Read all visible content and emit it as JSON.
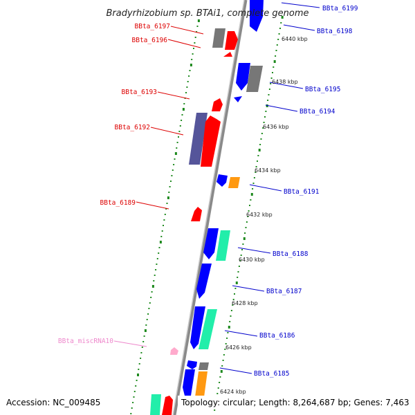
{
  "title": "Bradyrhizobium sp. BTAi1, complete genome",
  "accession": "Accession: NC_009485",
  "topology": "Topology: circular; Length: 8,264,687 bp; Genes: 7,463",
  "colors": {
    "backbone": "#888888",
    "backbone_light": "#bbbbbb",
    "tick": "#1f8a1f",
    "forward_label": "#0000cc",
    "reverse_label": "#dd0000",
    "rna_label": "#ee88cc",
    "red": "#ff0000",
    "blue": "#0000ff",
    "gray": "#777777",
    "purple": "#55559a",
    "teal": "#22eeaa",
    "orange": "#ff9911",
    "pink": "#ffaacc"
  },
  "kbp_labels": [
    "6440 kbp",
    "6438 kbp",
    "6436 kbp",
    "6434 kbp",
    "6432 kbp",
    "6430 kbp",
    "6428 kbp",
    "6426 kbp",
    "6424 kbp"
  ],
  "gene_labels": {
    "right": [
      "BBta_6199",
      "BBta_6198",
      "BBta_6195",
      "BBta_6194",
      "BBta_6191",
      "BBta_6188",
      "BBta_6187",
      "BBta_6186",
      "BBta_6185"
    ],
    "left": [
      "BBta_6197",
      "BBta_6196",
      "BBta_6193",
      "BBta_6192",
      "BBta_6189"
    ],
    "rna": "BBta_miscRNA10"
  }
}
